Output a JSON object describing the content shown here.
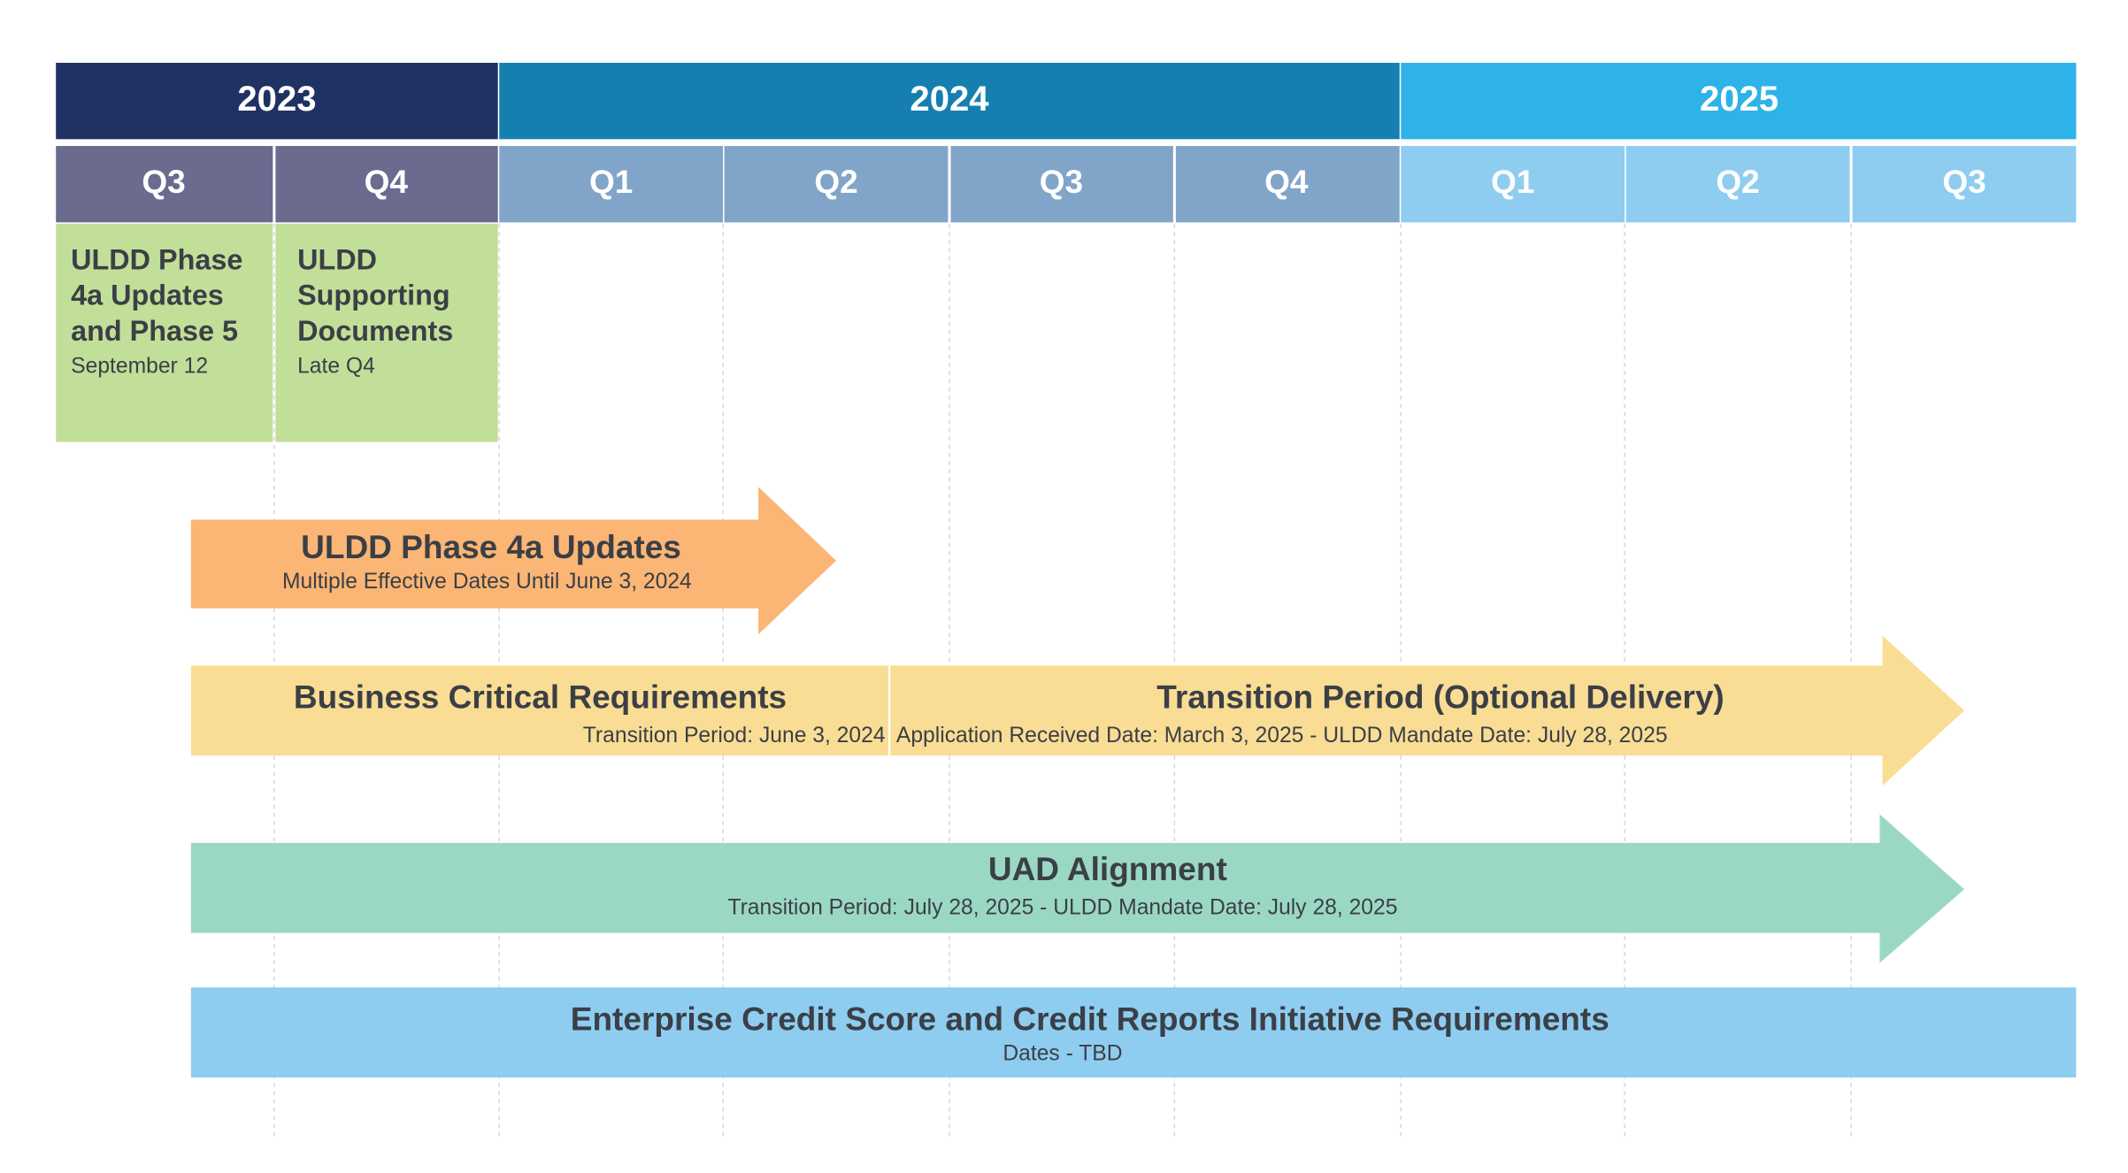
{
  "header": {
    "years": [
      "2023",
      "2024",
      "2025"
    ],
    "quarters": [
      "Q3",
      "Q4",
      "Q1",
      "Q2",
      "Q3",
      "Q4",
      "Q1",
      "Q2",
      "Q3"
    ]
  },
  "milestones": [
    {
      "title_lines": [
        "ULDD Phase",
        "4a Updates",
        "and Phase 5"
      ],
      "date": "September 12"
    },
    {
      "title_lines": [
        "ULDD",
        "Supporting",
        "Documents"
      ],
      "date": "Late Q4"
    }
  ],
  "bars": [
    {
      "title": "ULDD Phase 4a Updates",
      "subtitle": "Multiple Effective Dates Until June 3, 2024"
    },
    {
      "segments": [
        {
          "title": "Business Critical Requirements",
          "subtitle": "Transition Period: June 3, 2024"
        },
        {
          "title": "Transition Period (Optional Delivery)",
          "subtitle": "Application Received Date: March 3, 2025 - ULDD Mandate Date: July 28, 2025"
        }
      ]
    },
    {
      "title": "UAD Alignment",
      "subtitle": "Transition Period: July 28, 2025 - ULDD Mandate Date: July 28, 2025"
    },
    {
      "title": "Enterprise Credit Score and Credit Reports Initiative Requirements",
      "subtitle": "Dates - TBD"
    }
  ]
}
